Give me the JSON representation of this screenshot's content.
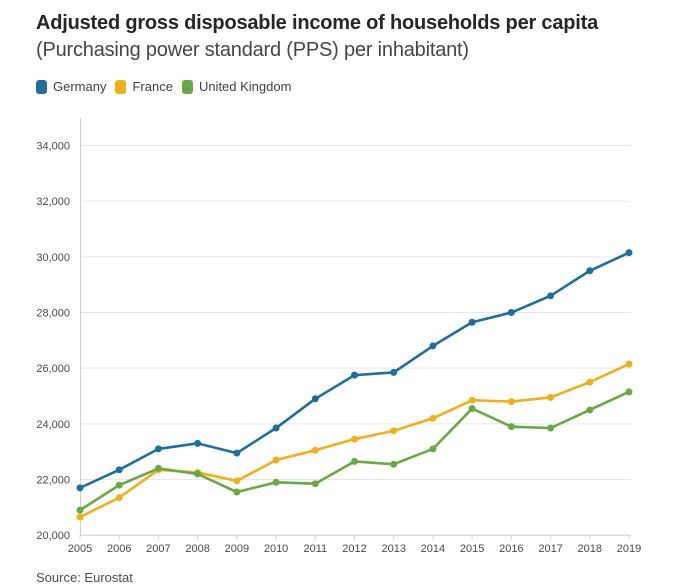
{
  "header": {
    "title": "Adjusted gross disposable income of households per capita",
    "subtitle": "(Purchasing power standard (PPS) per inhabitant)"
  },
  "footer": {
    "source": "Source: Eurostat"
  },
  "chart_data": {
    "type": "line",
    "title": "Adjusted gross disposable income of households per capita",
    "subtitle": "(Purchasing power standard (PPS) per inhabitant)",
    "source": "Source: Eurostat",
    "x": [
      2005,
      2006,
      2007,
      2008,
      2009,
      2010,
      2011,
      2012,
      2013,
      2014,
      2015,
      2016,
      2017,
      2018,
      2019
    ],
    "ylim": [
      20000,
      34000
    ],
    "y_ticks": [
      20000,
      22000,
      24000,
      26000,
      28000,
      30000,
      32000,
      34000
    ],
    "y_tick_labels": [
      "20,000",
      "22,000",
      "24,000",
      "26,000",
      "28,000",
      "30,000",
      "32,000",
      "34,000"
    ],
    "grid": "horizontal",
    "legend_position": "top",
    "series": [
      {
        "name": "Germany",
        "color": "#1f6e9c",
        "values": [
          21700,
          22350,
          23100,
          23300,
          22950,
          23850,
          24900,
          25750,
          25850,
          26800,
          27650,
          28000,
          28600,
          29500,
          30150
        ]
      },
      {
        "name": "France",
        "color": "#f0b01e",
        "values": [
          20650,
          21350,
          22350,
          22250,
          21950,
          22700,
          23050,
          23450,
          23750,
          24200,
          24850,
          24800,
          24950,
          25500,
          26150
        ]
      },
      {
        "name": "United Kingdom",
        "color": "#69a945",
        "values": [
          20900,
          21800,
          22400,
          22200,
          21550,
          21900,
          21850,
          22650,
          22550,
          23100,
          24550,
          23900,
          23850,
          24500,
          25150
        ]
      }
    ]
  }
}
